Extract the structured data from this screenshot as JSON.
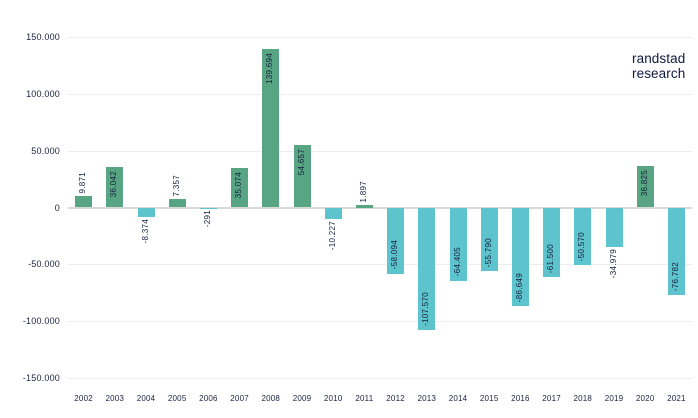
{
  "brand": {
    "line1": "randstad",
    "line2": "research"
  },
  "chart_data": {
    "type": "bar",
    "title": "",
    "xlabel": "",
    "ylabel": "",
    "categories": [
      "2002",
      "2003",
      "2004",
      "2005",
      "2006",
      "2007",
      "2008",
      "2009",
      "2010",
      "2011",
      "2012",
      "2013",
      "2014",
      "2015",
      "2016",
      "2017",
      "2018",
      "2019",
      "2020",
      "2021"
    ],
    "values": [
      9871,
      36042,
      -8374,
      7357,
      -291,
      35074,
      139694,
      54657,
      -10227,
      1897,
      -58094,
      -107570,
      -64405,
      -55790,
      -86649,
      -61500,
      -50570,
      -34979,
      36825,
      -76782
    ],
    "value_labels": [
      "9.871",
      "36.042",
      "-8.374",
      "7.357",
      "-291",
      "35.074",
      "139.694",
      "54.657",
      "-10.227",
      "1.897",
      "-58.094",
      "-107.570",
      "-64.405",
      "-55.790",
      "-86.649",
      "-61.500",
      "-50.570",
      "-34.979",
      "36.825",
      "-76.782"
    ],
    "colors": {
      "positive": "#58a584",
      "negative": "#5dc3cd"
    },
    "y_ticks": {
      "labels": [
        "150.000",
        "100.000",
        "50.000",
        "0",
        "-50.000",
        "-100.000",
        "-150.000"
      ],
      "values": [
        150000,
        100000,
        50000,
        0,
        -50000,
        -100000,
        -150000
      ]
    },
    "ylim": [
      -150000,
      150000
    ],
    "grid": true,
    "legend": false
  }
}
